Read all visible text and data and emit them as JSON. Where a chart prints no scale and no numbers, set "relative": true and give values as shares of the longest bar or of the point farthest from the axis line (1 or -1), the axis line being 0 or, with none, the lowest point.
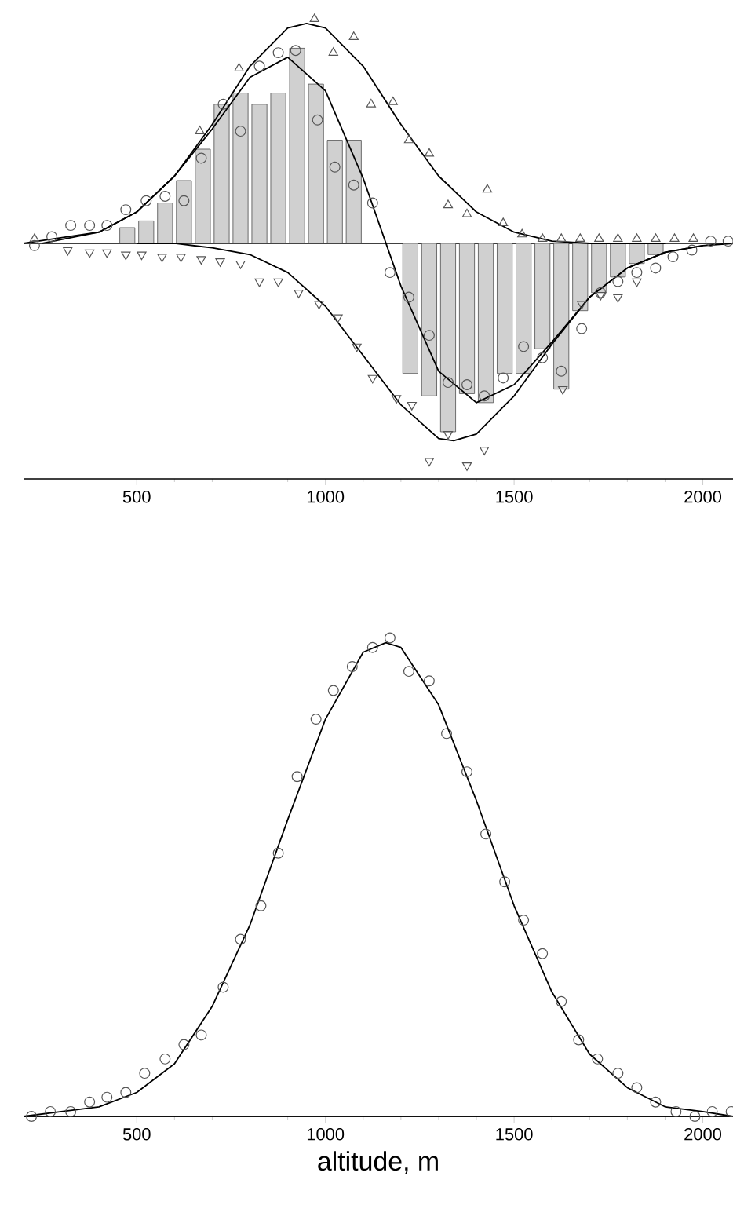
{
  "chart_data": [
    {
      "type": "bar",
      "relative": true,
      "xlim": [
        200,
        2080
      ],
      "xticks": [
        500,
        1000,
        1500,
        2000
      ],
      "tick_labels": "x",
      "series": [
        {
          "color": "#d0d0d0",
          "x": [
            475,
            525,
            575,
            625,
            675,
            725,
            775,
            825,
            875,
            925,
            975,
            1025,
            1075,
            1225,
            1275,
            1325,
            1375,
            1425,
            1475,
            1525,
            1575,
            1625,
            1675,
            1725,
            1775,
            1825,
            1875
          ],
          "values": [
            0.07,
            0.1,
            0.18,
            0.28,
            0.42,
            0.62,
            0.67,
            0.62,
            0.67,
            0.87,
            0.71,
            0.46,
            0.46,
            -0.58,
            -0.68,
            -0.84,
            -0.67,
            -0.71,
            -0.58,
            -0.58,
            -0.47,
            -0.65,
            -0.3,
            -0.22,
            -0.15,
            -0.09,
            -0.05
          ]
        },
        {
          "type": "line",
          "color": "#000000",
          "x": [
            200,
            400,
            500,
            600,
            700,
            800,
            900,
            950,
            1000,
            1100,
            1200,
            1300,
            1400,
            1500,
            1600,
            1700,
            1900
          ],
          "values": [
            0.0,
            0.05,
            0.14,
            0.3,
            0.53,
            0.79,
            0.96,
            0.98,
            0.96,
            0.79,
            0.53,
            0.3,
            0.14,
            0.05,
            0.01,
            0.0,
            0.0
          ]
        },
        {
          "type": "line",
          "color": "#000000",
          "x": [
            500,
            600,
            700,
            800,
            900,
            1000,
            1100,
            1200,
            1300,
            1340,
            1400,
            1500,
            1600,
            1700,
            1800,
            1900,
            2000,
            2080
          ],
          "values": [
            0.0,
            0.0,
            -0.02,
            -0.05,
            -0.13,
            -0.28,
            -0.5,
            -0.72,
            -0.87,
            -0.88,
            -0.85,
            -0.68,
            -0.45,
            -0.24,
            -0.11,
            -0.04,
            -0.01,
            0.0
          ]
        },
        {
          "type": "line",
          "color": "#000000",
          "x": [
            250,
            400,
            500,
            600,
            700,
            800,
            900,
            1000,
            1100,
            1200,
            1300,
            1400,
            1500,
            1600,
            1700,
            1800,
            1900,
            2000
          ],
          "values": [
            0.0,
            0.05,
            0.14,
            0.3,
            0.51,
            0.74,
            0.83,
            0.68,
            0.29,
            -0.19,
            -0.57,
            -0.71,
            -0.63,
            -0.44,
            -0.24,
            -0.11,
            -0.04,
            -0.01
          ]
        },
        {
          "type": "scatter",
          "marker": "triangle",
          "color": "#555555",
          "x": [
            229,
            667,
            771,
            971,
            1021,
            1075,
            1121,
            1179,
            1221,
            1275,
            1325,
            1375,
            1429,
            1471,
            1521,
            1575,
            1625,
            1675,
            1725,
            1775,
            1825,
            1875,
            1925,
            1975
          ],
          "values": [
            0.02,
            0.5,
            0.78,
            1.0,
            0.85,
            0.92,
            0.62,
            0.63,
            0.46,
            0.4,
            0.17,
            0.13,
            0.24,
            0.09,
            0.04,
            0.02,
            0.02,
            0.02,
            0.02,
            0.02,
            0.02,
            0.02,
            0.02,
            0.02
          ]
        },
        {
          "type": "scatter",
          "marker": "triangle_down",
          "color": "#555555",
          "x": [
            317,
            375,
            421,
            471,
            513,
            567,
            617,
            671,
            721,
            775,
            825,
            875,
            929,
            983,
            1033,
            1083,
            1125,
            1188,
            1229,
            1275,
            1325,
            1375,
            1421,
            1629,
            1679,
            1729,
            1775,
            1825
          ],
          "values": [
            -0.03,
            -0.04,
            -0.04,
            -0.05,
            -0.05,
            -0.06,
            -0.06,
            -0.07,
            -0.08,
            -0.09,
            -0.17,
            -0.17,
            -0.22,
            -0.27,
            -0.33,
            -0.46,
            -0.6,
            -0.69,
            -0.72,
            -0.97,
            -0.85,
            -0.99,
            -0.92,
            -0.65,
            -0.27,
            -0.23,
            -0.24,
            -0.17
          ]
        },
        {
          "type": "scatter",
          "marker": "circle",
          "color": "#555555",
          "x": [
            229,
            275,
            325,
            375,
            421,
            471,
            525,
            575,
            625,
            671,
            729,
            775,
            825,
            875,
            921,
            979,
            1025,
            1075,
            1125,
            1171,
            1221,
            1275,
            1325,
            1375,
            1421,
            1471,
            1525,
            1575,
            1625,
            1679,
            1729,
            1775,
            1825,
            1875,
            1921,
            1971,
            2021,
            2067
          ],
          "values": [
            -0.01,
            0.03,
            0.08,
            0.08,
            0.08,
            0.15,
            0.19,
            0.21,
            0.19,
            0.38,
            0.62,
            0.5,
            0.79,
            0.85,
            0.86,
            0.55,
            0.34,
            0.26,
            0.18,
            -0.13,
            -0.24,
            -0.41,
            -0.62,
            -0.63,
            -0.68,
            -0.6,
            -0.46,
            -0.51,
            -0.57,
            -0.38,
            -0.22,
            -0.17,
            -0.13,
            -0.11,
            -0.06,
            -0.03,
            0.01,
            0.01
          ]
        }
      ]
    },
    {
      "type": "scatter",
      "relative": true,
      "xlabel": "altitude, m",
      "xlim": [
        200,
        2080
      ],
      "xticks": [
        500,
        1000,
        1500,
        2000
      ],
      "tick_labels": "x",
      "series": [
        {
          "type": "line",
          "color": "#000000",
          "x": [
            200,
            300,
            400,
            500,
            600,
            700,
            800,
            900,
            1000,
            1100,
            1160,
            1200,
            1300,
            1400,
            1500,
            1600,
            1700,
            1800,
            1900,
            2000,
            2080
          ],
          "values": [
            0.0,
            0.01,
            0.02,
            0.05,
            0.11,
            0.23,
            0.4,
            0.62,
            0.83,
            0.97,
            0.99,
            0.98,
            0.86,
            0.66,
            0.44,
            0.26,
            0.13,
            0.06,
            0.02,
            0.01,
            0.0
          ]
        },
        {
          "marker": "circle",
          "color": "#555555",
          "x": [
            221,
            271,
            325,
            375,
            421,
            471,
            521,
            575,
            625,
            671,
            729,
            775,
            829,
            875,
            925,
            975,
            1021,
            1071,
            1125,
            1171,
            1221,
            1275,
            1321,
            1375,
            1425,
            1475,
            1525,
            1575,
            1625,
            1671,
            1721,
            1775,
            1825,
            1875,
            1929,
            1979,
            2025,
            2075
          ],
          "values": [
            0.0,
            0.01,
            0.01,
            0.03,
            0.04,
            0.05,
            0.09,
            0.12,
            0.15,
            0.17,
            0.27,
            0.37,
            0.44,
            0.55,
            0.71,
            0.83,
            0.89,
            0.94,
            0.98,
            1.0,
            0.93,
            0.91,
            0.8,
            0.72,
            0.59,
            0.49,
            0.41,
            0.34,
            0.24,
            0.16,
            0.12,
            0.09,
            0.06,
            0.03,
            0.01,
            0.0,
            0.01,
            0.01
          ]
        }
      ]
    }
  ]
}
